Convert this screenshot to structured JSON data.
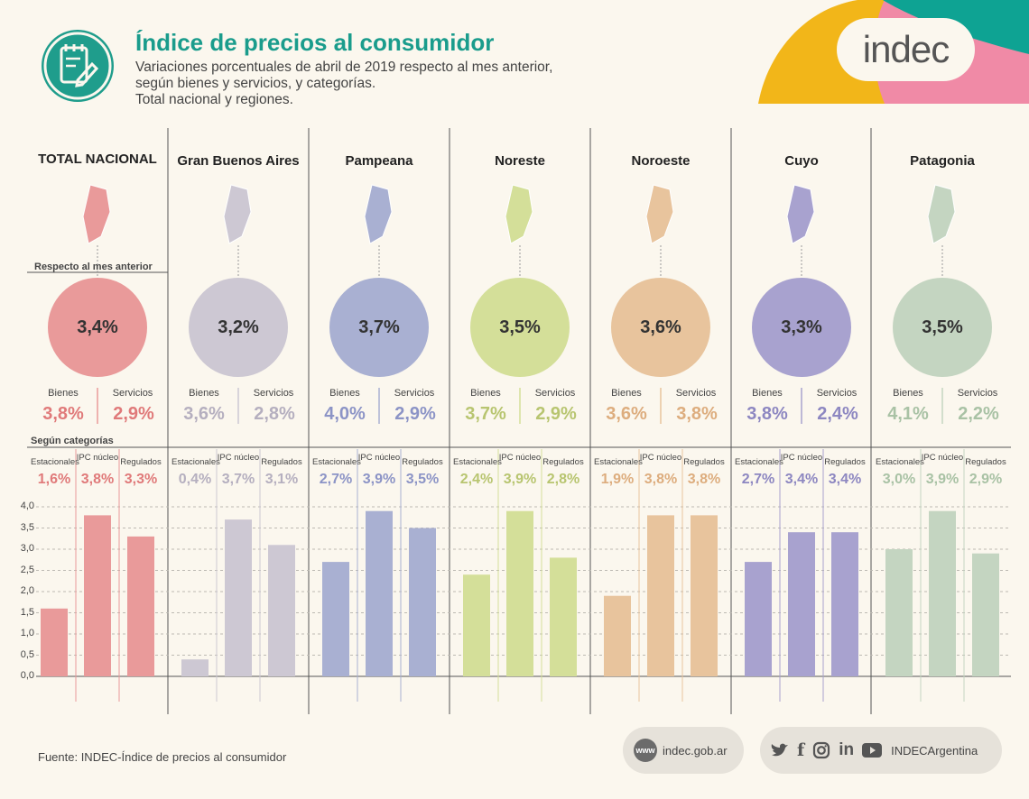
{
  "header": {
    "title": "Índice de precios al consumidor",
    "subtitle_lines": [
      "Variaciones porcentuales de abril de 2019 respecto al mes anterior,",
      "según bienes y servicios, y categorías.",
      "Total nacional y regiones."
    ],
    "logo_text": "indec"
  },
  "labels": {
    "respecto": "Respecto al mes anterior",
    "segun": "Según categorías",
    "bienes": "Bienes",
    "servicios": "Servicios",
    "cat_est": "Estacionales",
    "cat_ipc": "IPC núcleo",
    "cat_reg": "Regulados"
  },
  "chart_data": {
    "type": "bar",
    "categories": [
      "Estacionales",
      "IPC núcleo",
      "Regulados"
    ],
    "ylim": [
      0,
      4.0
    ],
    "yticks": [
      "0,0",
      "0,5",
      "1,0",
      "1,5",
      "2,0",
      "2,5",
      "3,0",
      "3,5",
      "4,0"
    ],
    "regions": [
      {
        "name": "TOTAL NACIONAL",
        "total": "3,4%",
        "bienes": "3,8%",
        "servicios": "2,9%",
        "cat_labels": [
          "1,6%",
          "3,8%",
          "3,3%"
        ],
        "values": [
          1.6,
          3.8,
          3.3
        ],
        "color": "#e99a9a",
        "text_color": "#e07a7a"
      },
      {
        "name": "Gran Buenos Aires",
        "total": "3,2%",
        "bienes": "3,6%",
        "servicios": "2,8%",
        "cat_labels": [
          "0,4%",
          "3,7%",
          "3,1%"
        ],
        "values": [
          0.4,
          3.7,
          3.1
        ],
        "color": "#cdc8d3",
        "text_color": "#b5afbf"
      },
      {
        "name": "Pampeana",
        "total": "3,7%",
        "bienes": "4,0%",
        "servicios": "2,9%",
        "cat_labels": [
          "2,7%",
          "3,9%",
          "3,5%"
        ],
        "values": [
          2.7,
          3.9,
          3.5
        ],
        "color": "#a9b0d2",
        "text_color": "#8c94c6"
      },
      {
        "name": "Noreste",
        "total": "3,5%",
        "bienes": "3,7%",
        "servicios": "2,9%",
        "cat_labels": [
          "2,4%",
          "3,9%",
          "2,8%"
        ],
        "values": [
          2.4,
          3.9,
          2.8
        ],
        "color": "#d4df99",
        "text_color": "#b8c570"
      },
      {
        "name": "Noroeste",
        "total": "3,6%",
        "bienes": "3,6%",
        "servicios": "3,8%",
        "cat_labels": [
          "1,9%",
          "3,8%",
          "3,8%"
        ],
        "values": [
          1.9,
          3.8,
          3.8
        ],
        "color": "#e8c49d",
        "text_color": "#ddad7e"
      },
      {
        "name": "Cuyo",
        "total": "3,3%",
        "bienes": "3,8%",
        "servicios": "2,4%",
        "cat_labels": [
          "2,7%",
          "3,4%",
          "3,4%"
        ],
        "values": [
          2.7,
          3.4,
          3.4
        ],
        "color": "#a8a2cf",
        "text_color": "#8d87c1"
      },
      {
        "name": "Patagonia",
        "total": "3,5%",
        "bienes": "4,1%",
        "servicios": "2,2%",
        "cat_labels": [
          "3,0%",
          "3,9%",
          "2,9%"
        ],
        "values": [
          3.0,
          3.9,
          2.9
        ],
        "color": "#c4d5c1",
        "text_color": "#a9c2a5"
      }
    ]
  },
  "footer": {
    "source": "Fuente: INDEC-Índice de precios al consumidor",
    "web_icon": "www",
    "website": "indec.gob.ar",
    "social_icons": [
      "twitter-icon",
      "facebook-icon",
      "instagram-icon",
      "linkedin-icon",
      "youtube-icon"
    ],
    "social_handle": "INDECArgentina"
  },
  "colors": {
    "accent": "#1a9c8c",
    "corner_yellow": "#f2b619",
    "corner_teal": "#0ea393",
    "corner_pink": "#f08aa6"
  }
}
